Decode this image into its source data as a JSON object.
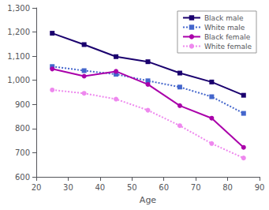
{
  "chart_data": {
    "type": "line",
    "xlabel": "Age",
    "x": [
      25,
      35,
      45,
      55,
      65,
      75,
      85
    ],
    "series": [
      {
        "name": "Black male",
        "color": "#1a006e",
        "marker": "square",
        "line_style": "solid",
        "values": [
          1195,
          1148,
          1098,
          1077,
          1030,
          993,
          938
        ]
      },
      {
        "name": "White male",
        "color": "#4466cc",
        "marker": "square",
        "line_style": "dotted",
        "values": [
          1057,
          1040,
          1025,
          998,
          972,
          932,
          863
        ]
      },
      {
        "name": "Black female",
        "color": "#aa00aa",
        "marker": "circle",
        "line_style": "solid",
        "values": [
          1047,
          1017,
          1037,
          983,
          895,
          843,
          722
        ]
      },
      {
        "name": "White female",
        "color": "#ee88ee",
        "marker": "circle",
        "line_style": "dotted",
        "values": [
          960,
          946,
          922,
          876,
          812,
          738,
          678
        ]
      }
    ],
    "xlim": [
      20,
      90
    ],
    "ylim": [
      600,
      1300
    ],
    "xticks": [
      20,
      30,
      40,
      50,
      60,
      70,
      80,
      90
    ],
    "yticks": [
      600,
      700,
      800,
      900,
      1000,
      1100,
      1200,
      1300
    ],
    "grid": false,
    "legend": "upper right"
  }
}
